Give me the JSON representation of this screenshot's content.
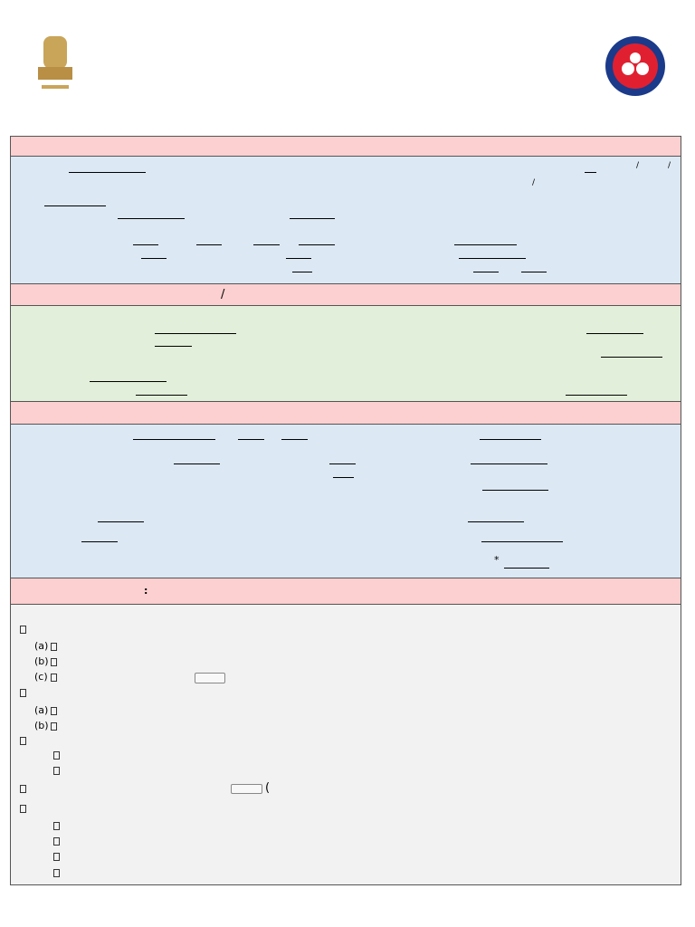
{
  "form": {
    "section1": {
      "separators": [
        "/",
        "/",
        "/"
      ]
    },
    "section2_header": {
      "separator": "/"
    },
    "section3": {
      "required_mark": "*"
    },
    "section4_header": {
      "colon": ":"
    },
    "section4": {
      "items": [
        "(a)",
        "(b)",
        "(c)",
        "(a)",
        "(b)"
      ],
      "paren": "("
    }
  }
}
